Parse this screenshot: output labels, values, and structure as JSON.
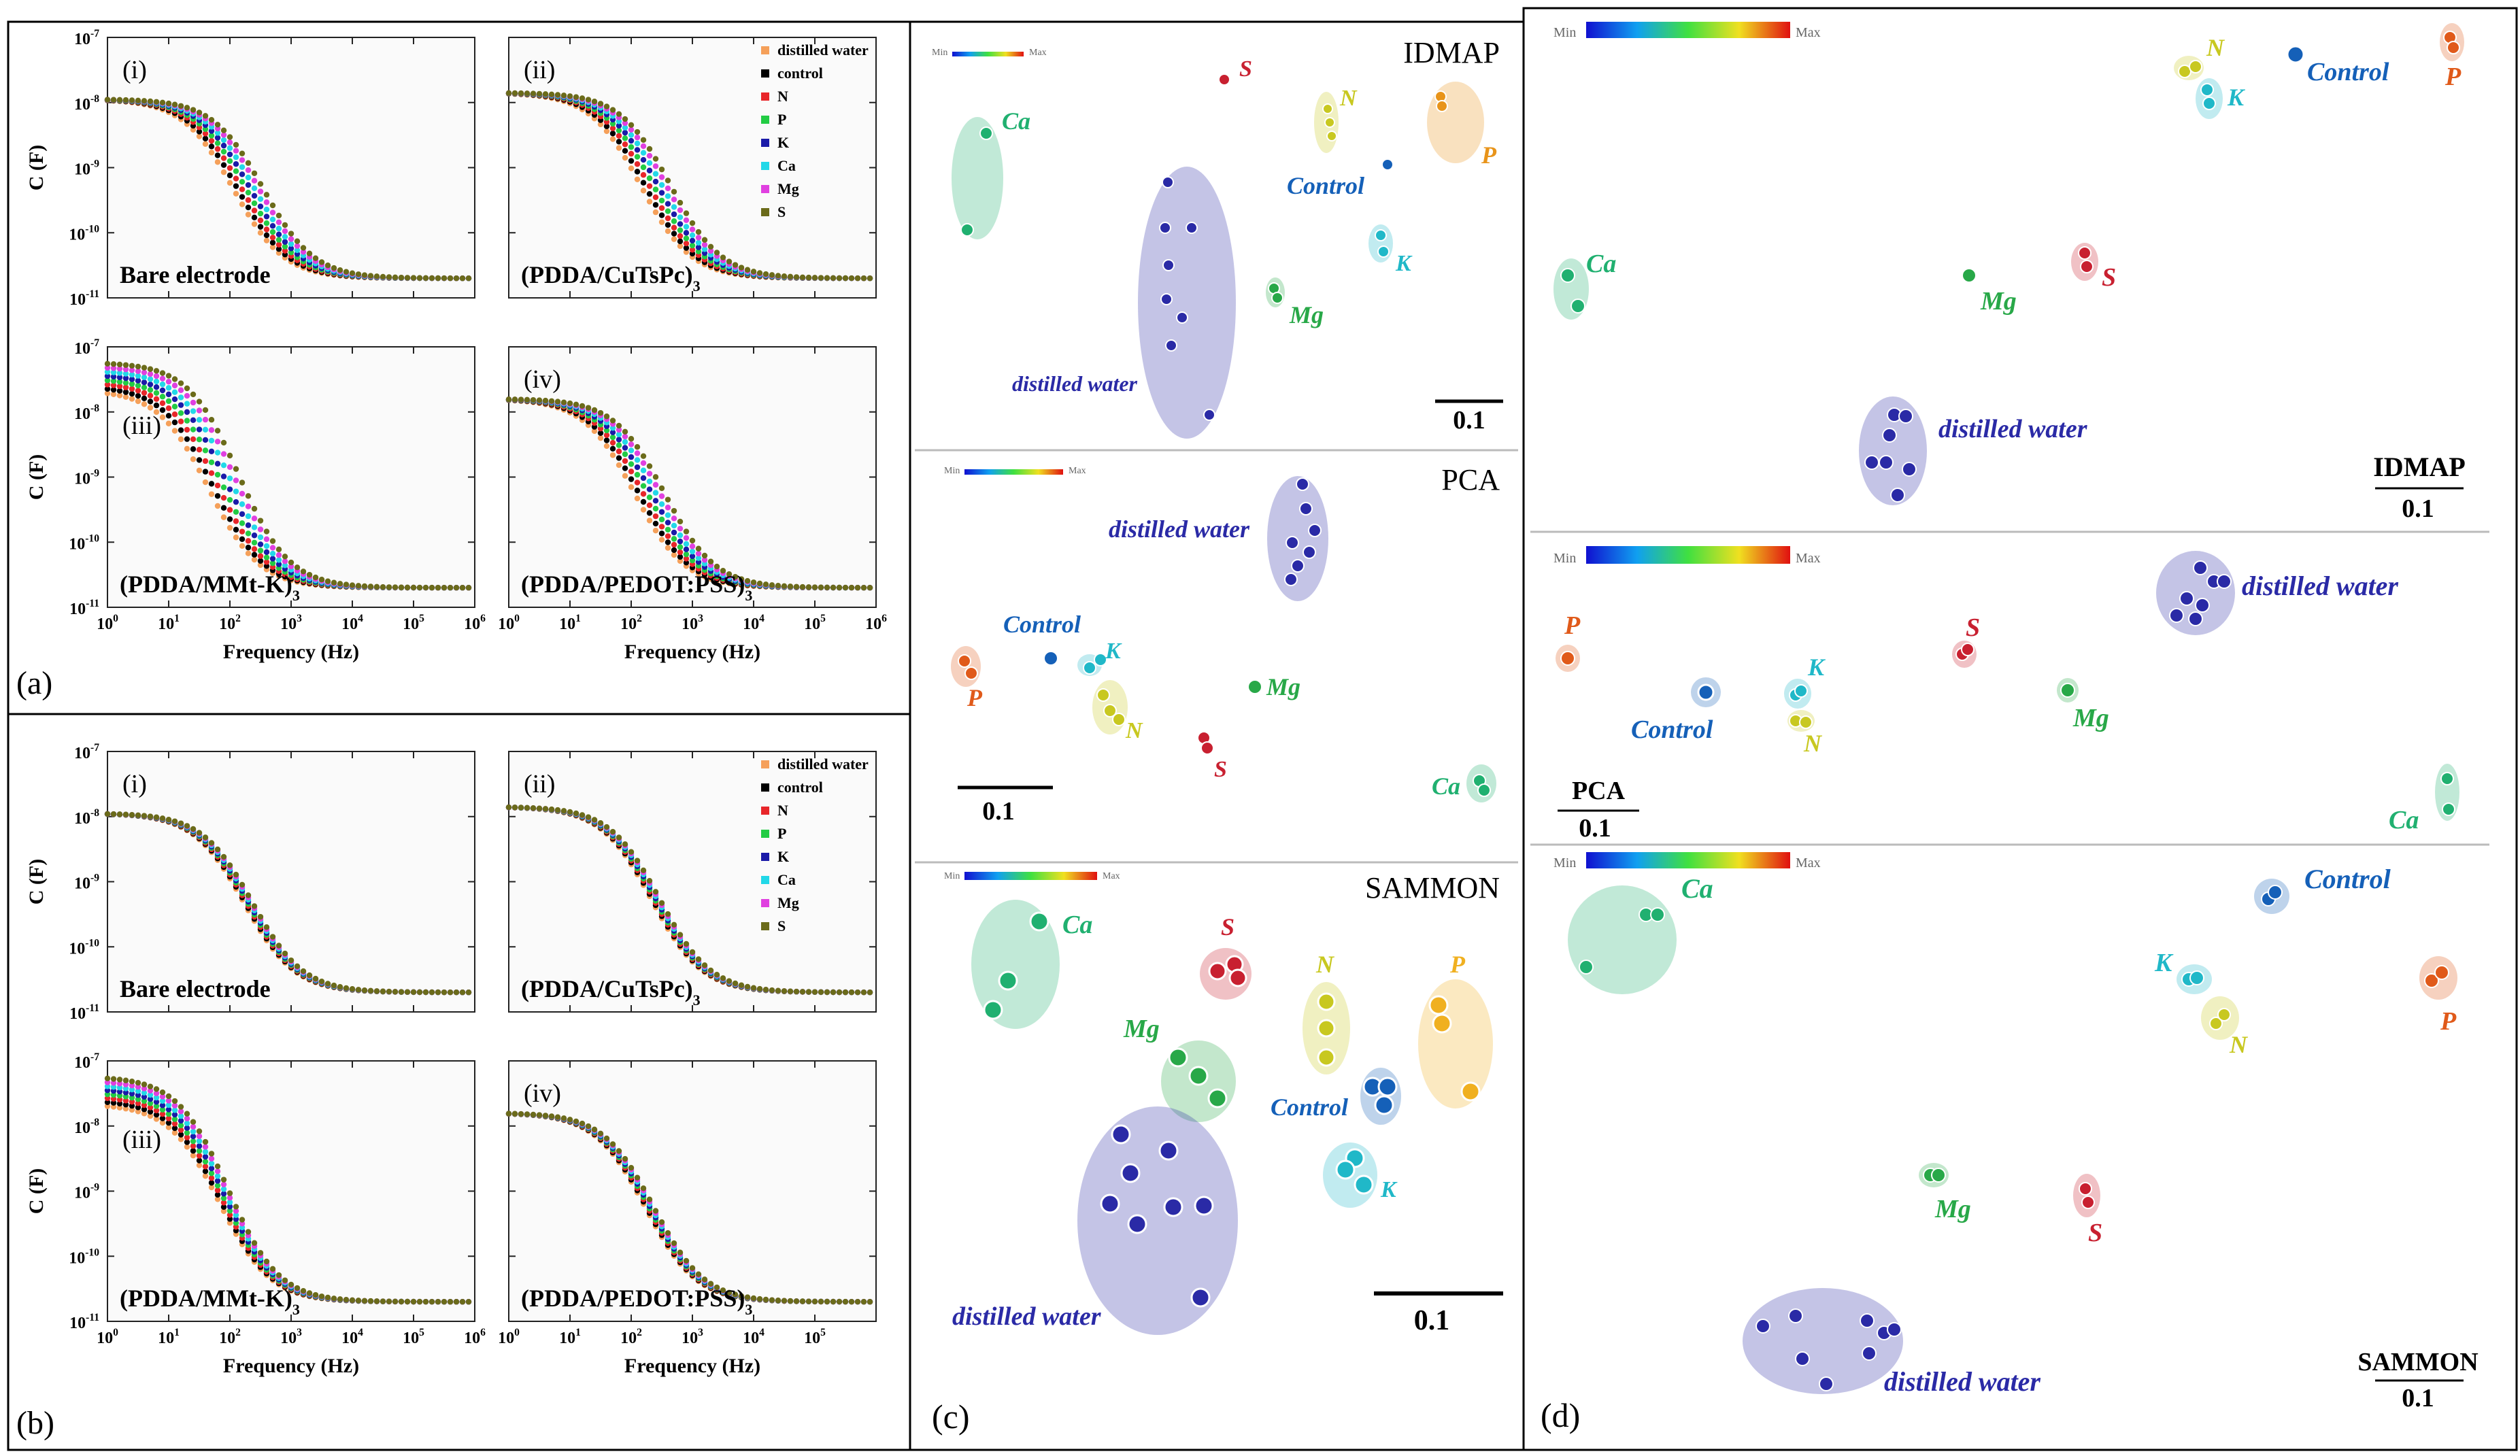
{
  "figure": {
    "panel_labels": [
      "(a)",
      "(b)",
      "(c)",
      "(d)"
    ],
    "colors": {
      "distilled water": "#f5a05a",
      "control": "#000000",
      "N": "#e8262a",
      "P": "#22cc44",
      "K": "#1a1aa8",
      "Ca": "#22d8e8",
      "Mg": "#e040e0",
      "S": "#6b6b1a"
    },
    "cluster_colors": {
      "distilled water": "#2a2aa6",
      "Control": "#1560b8",
      "N": "#c8c820",
      "P": "#e05a1a",
      "K": "#20b8c8",
      "Ca": "#20b070",
      "Mg": "#28a848",
      "S": "#c82030"
    }
  },
  "chart_data": [
    {
      "type": "line",
      "panel": "(a)",
      "subplots": [
        {
          "roman": "(i)",
          "name": "Bare electrode",
          "sub": ""
        },
        {
          "roman": "(ii)",
          "name": "(PDDA/CuTsPc)",
          "sub": "3"
        },
        {
          "roman": "(iii)",
          "name": "(PDDA/MMt-K)",
          "sub": "3"
        },
        {
          "roman": "(iv)",
          "name": "(PDDA/PEDOT:PSS)",
          "sub": "3"
        }
      ],
      "xlabel": "Frequency (Hz)",
      "ylabel": "C (F)",
      "xscale": "log",
      "yscale": "log",
      "xlim_exp": [
        0,
        6
      ],
      "ylim_exp": [
        -11,
        -7
      ],
      "x_ticks": [
        "10",
        "10",
        "10",
        "10",
        "10",
        "10",
        "10"
      ],
      "x_tick_exp": [
        "0",
        "1",
        "2",
        "3",
        "4",
        "5",
        "6"
      ],
      "y_ticks": [
        "10",
        "10",
        "10",
        "10",
        "10"
      ],
      "y_tick_exp": [
        "-11",
        "-10",
        "-9",
        "-8",
        "-7"
      ],
      "legend": [
        "distilled water",
        "control",
        "N",
        "P",
        "K",
        "Ca",
        "Mg",
        "S"
      ],
      "series_model": {
        "C_high_log": [
          -7.95,
          -7.85,
          -7.45,
          -7.8
        ],
        "C_low_log": -10.7,
        "corner_log_f": [
          2.3,
          2.4,
          1.9,
          2.3
        ]
      }
    },
    {
      "type": "line",
      "panel": "(b)",
      "subplots": [
        {
          "roman": "(i)",
          "name": "Bare electrode",
          "sub": ""
        },
        {
          "roman": "(ii)",
          "name": "(PDDA/CuTsPc)",
          "sub": "3"
        },
        {
          "roman": "(iii)",
          "name": "(PDDA/MMt-K)",
          "sub": "3"
        },
        {
          "roman": "(iv)",
          "name": "(PDDA/PEDOT:PSS)",
          "sub": "3"
        }
      ],
      "xlabel": "Frequency (Hz)",
      "ylabel": "C (F)",
      "xscale": "log",
      "yscale": "log",
      "xlim_exp": [
        0,
        6
      ],
      "ylim_exp": [
        -11,
        -7
      ],
      "x_ticks": [
        "10",
        "10",
        "10",
        "10",
        "10",
        "10",
        "10"
      ],
      "x_tick_exp": [
        "0",
        "1",
        "2",
        "3",
        "4",
        "5",
        "6"
      ],
      "y_ticks": [
        "10",
        "10",
        "10",
        "10",
        "10"
      ],
      "y_tick_exp": [
        "-11",
        "-10",
        "-9",
        "-8",
        "-7"
      ],
      "legend": [
        "distilled water",
        "control",
        "N",
        "P",
        "K",
        "Ca",
        "Mg",
        "S"
      ]
    },
    {
      "type": "scatter",
      "panel": "(c)",
      "colorbar": {
        "min": "Min",
        "max": "Max"
      },
      "maps": [
        {
          "title": "IDMAP",
          "scale": "0.1"
        },
        {
          "title": "PCA",
          "scale": "0.1"
        },
        {
          "title": "SAMMON",
          "scale": "0.1"
        }
      ]
    },
    {
      "type": "scatter",
      "panel": "(d)",
      "colorbar": {
        "min": "Min",
        "max": "Max"
      },
      "maps": [
        {
          "title": "IDMAP",
          "scale": "0.1"
        },
        {
          "title": "PCA",
          "scale": "0.1"
        },
        {
          "title": "SAMMON",
          "scale": "0.1"
        }
      ]
    }
  ]
}
